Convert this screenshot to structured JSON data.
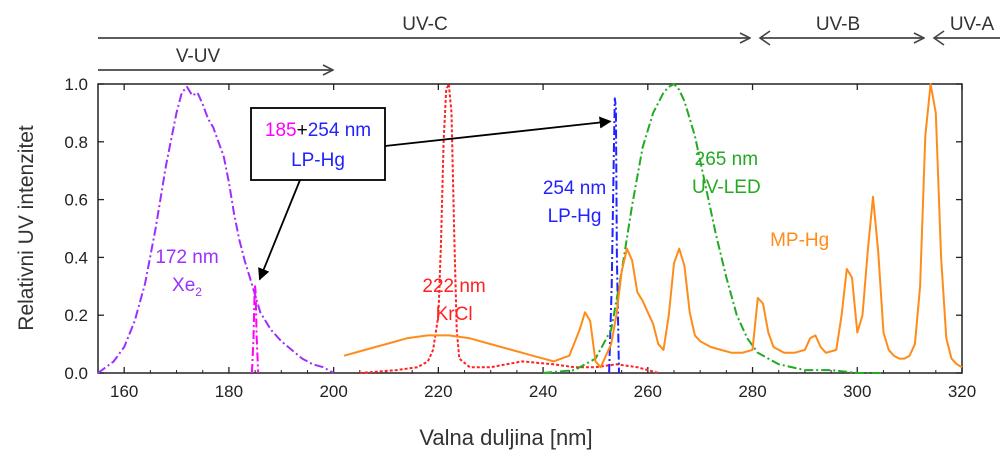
{
  "chart_data": {
    "type": "line",
    "xlabel": "Valna duljina [nm]",
    "ylabel": "Relativni UV intenzitet",
    "xlim": [
      155,
      320
    ],
    "ylim": [
      0,
      1.0
    ],
    "x_ticks": [
      160,
      180,
      200,
      220,
      240,
      260,
      280,
      300,
      320
    ],
    "y_ticks": [
      0.0,
      0.2,
      0.4,
      0.6,
      0.8,
      1.0
    ],
    "x_tick_labels": [
      "160",
      "180",
      "200",
      "220",
      "240",
      "260",
      "280",
      "300",
      "320"
    ],
    "y_tick_labels": [
      "0.0",
      "0.2",
      "0.4",
      "0.6",
      "0.8",
      "1.0"
    ],
    "grid": false,
    "uv_bands": [
      {
        "label": "UV-C",
        "x_start": 155,
        "x_end": 280
      },
      {
        "label": "UV-B",
        "x_start": 280,
        "x_end": 315
      },
      {
        "label": "UV-A",
        "x_start": 315,
        "x_end": 320
      },
      {
        "label": "V-UV",
        "x_start": 155,
        "x_end": 200
      }
    ],
    "series": [
      {
        "color": "#9b30ff",
        "dash": "dashdot",
        "x": [
          155,
          158,
          160,
          162,
          164,
          166,
          168,
          170,
          171,
          172,
          173,
          174,
          175,
          176,
          177,
          178,
          179,
          180,
          181,
          182,
          183,
          184,
          185,
          186,
          188,
          190,
          192,
          194,
          196,
          198,
          200
        ],
        "y": [
          0.0,
          0.04,
          0.09,
          0.18,
          0.31,
          0.5,
          0.72,
          0.9,
          0.97,
          0.99,
          0.96,
          0.97,
          0.93,
          0.88,
          0.85,
          0.8,
          0.75,
          0.66,
          0.55,
          0.46,
          0.39,
          0.33,
          0.27,
          0.21,
          0.15,
          0.11,
          0.08,
          0.05,
          0.03,
          0.02,
          0.0
        ]
      },
      {
        "color": "#ff00ff",
        "dash": "dashdot",
        "x": [
          184.4,
          184.7,
          184.9,
          185.0,
          185.1,
          185.3,
          185.6
        ],
        "y": [
          0.0,
          0.12,
          0.28,
          0.3,
          0.28,
          0.12,
          0.0
        ]
      },
      {
        "color": "#ff2222",
        "dash": "dot",
        "x": [
          205,
          212,
          216,
          218,
          219,
          220,
          220.5,
          221,
          221.5,
          222,
          222.5,
          223,
          223.5,
          224,
          226,
          230,
          236,
          242,
          246,
          250,
          254,
          258,
          262
        ],
        "y": [
          0.0,
          0.01,
          0.02,
          0.04,
          0.08,
          0.2,
          0.45,
          0.8,
          0.98,
          1.0,
          0.9,
          0.5,
          0.15,
          0.05,
          0.02,
          0.02,
          0.04,
          0.03,
          0.02,
          0.02,
          0.03,
          0.02,
          0.0
        ]
      },
      {
        "color": "#2222ff",
        "dash": "dashdot",
        "x": [
          252.6,
          253.1,
          253.5,
          253.7,
          253.9,
          254.1,
          254.5
        ],
        "y": [
          0.0,
          0.3,
          0.75,
          0.95,
          0.92,
          0.4,
          0.0
        ]
      },
      {
        "color": "#22aa22",
        "dash": "dashdot",
        "x": [
          240,
          246,
          250,
          253,
          255,
          257,
          259,
          261,
          263,
          264,
          265,
          266,
          267,
          269,
          271,
          273,
          275,
          277,
          279,
          281,
          285,
          290,
          295,
          300,
          305
        ],
        "y": [
          0.0,
          0.01,
          0.05,
          0.15,
          0.35,
          0.58,
          0.78,
          0.9,
          0.97,
          0.99,
          1.0,
          0.98,
          0.94,
          0.82,
          0.65,
          0.48,
          0.33,
          0.2,
          0.12,
          0.07,
          0.03,
          0.01,
          0.01,
          0.0,
          0.0
        ]
      },
      {
        "color": "#ff8c1a",
        "dash": "solid",
        "x": [
          202,
          206,
          210,
          214,
          218,
          222,
          226,
          230,
          234,
          238,
          242,
          245,
          247,
          248,
          249,
          250,
          251,
          253,
          254,
          255,
          256,
          257,
          258,
          259,
          260,
          261,
          262,
          263,
          264,
          265,
          266,
          267,
          268,
          269,
          270,
          272,
          274,
          276,
          278,
          280,
          281,
          282,
          283,
          284,
          286,
          288,
          290,
          291,
          292,
          293,
          294,
          296,
          297,
          298,
          299,
          300,
          301,
          302,
          303,
          304,
          305,
          306,
          307,
          308,
          309,
          310,
          311,
          312,
          313,
          314,
          315,
          316,
          317,
          318,
          319,
          320
        ],
        "y": [
          0.06,
          0.08,
          0.1,
          0.12,
          0.13,
          0.13,
          0.12,
          0.1,
          0.08,
          0.06,
          0.04,
          0.06,
          0.15,
          0.21,
          0.18,
          0.04,
          0.02,
          0.1,
          0.2,
          0.35,
          0.43,
          0.39,
          0.28,
          0.25,
          0.21,
          0.17,
          0.1,
          0.08,
          0.2,
          0.38,
          0.43,
          0.37,
          0.21,
          0.13,
          0.11,
          0.09,
          0.08,
          0.07,
          0.07,
          0.08,
          0.26,
          0.24,
          0.14,
          0.09,
          0.07,
          0.07,
          0.08,
          0.12,
          0.13,
          0.09,
          0.07,
          0.08,
          0.2,
          0.36,
          0.33,
          0.14,
          0.2,
          0.42,
          0.61,
          0.42,
          0.14,
          0.08,
          0.06,
          0.05,
          0.05,
          0.06,
          0.1,
          0.3,
          0.82,
          1.0,
          0.9,
          0.4,
          0.12,
          0.05,
          0.03,
          0.02
        ]
      }
    ],
    "annotations": [
      {
        "lines": [
          "172 nm",
          "Xe"
        ],
        "sub": "2",
        "color": "#9b30ff",
        "x": 172,
        "y": 0.38
      },
      {
        "lines": [
          "222 nm",
          "KrCl"
        ],
        "color": "#ff2222",
        "x": 223,
        "y": 0.28
      },
      {
        "lines": [
          "254 nm",
          "LP-Hg"
        ],
        "color": "#2222ff",
        "x": 246,
        "y": 0.62
      },
      {
        "lines": [
          "265 nm",
          "UV-LED"
        ],
        "color": "#22aa22",
        "x": 275,
        "y": 0.72
      },
      {
        "lines": [
          "MP-Hg"
        ],
        "color": "#ff8c1a",
        "x": 289,
        "y": 0.44
      }
    ],
    "callout": {
      "line1_parts": [
        {
          "text": "185",
          "color": "#ff00ff"
        },
        {
          "text": "+",
          "color": "#000000"
        },
        {
          "text": "254 nm",
          "color": "#2222ff"
        }
      ],
      "line2": "LP-Hg",
      "line2_color": "#2222ff",
      "arrow_targets": [
        [
          185.3,
          0.31
        ],
        [
          254,
          0.94
        ]
      ]
    }
  }
}
